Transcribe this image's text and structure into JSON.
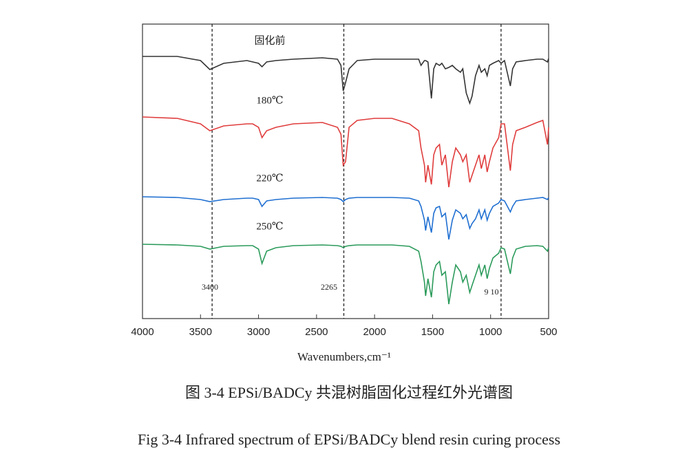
{
  "chart_data": {
    "type": "line",
    "xlabel": "Wavenumbers,cm⁻¹",
    "xlim": [
      4000,
      500
    ],
    "xticks": [
      4000,
      3500,
      3000,
      2500,
      2000,
      1500,
      1000,
      500
    ],
    "ylim": [
      0,
      428
    ],
    "x": [
      4000,
      3700,
      3500,
      3420,
      3300,
      3100,
      3050,
      3000,
      2970,
      2930,
      2850,
      2700,
      2450,
      2320,
      2290,
      2270,
      2250,
      2220,
      2150,
      2000,
      1850,
      1700,
      1620,
      1600,
      1570,
      1560,
      1540,
      1510,
      1490,
      1470,
      1440,
      1420,
      1390,
      1360,
      1330,
      1300,
      1260,
      1240,
      1210,
      1180,
      1160,
      1130,
      1100,
      1080,
      1050,
      1030,
      1010,
      980,
      930,
      910,
      880,
      830,
      810,
      780,
      700,
      600,
      550,
      510,
      500
    ],
    "series": [
      {
        "name": "固化前",
        "color": "#333333",
        "values": [
          381,
          381,
          375,
          362,
          371,
          375,
          373,
          371,
          366,
          373,
          375,
          377,
          379,
          377,
          368,
          331,
          343,
          363,
          375,
          377,
          377,
          377,
          377,
          368,
          375,
          375,
          373,
          320,
          363,
          371,
          368,
          371,
          363,
          365,
          368,
          363,
          358,
          363,
          328,
          313,
          323,
          353,
          368,
          358,
          363,
          353,
          368,
          371,
          375,
          371,
          375,
          338,
          363,
          373,
          375,
          377,
          377,
          373,
          378
        ]
      },
      {
        "name": "180℃",
        "color": "#e03c3c",
        "values": [
          293,
          291,
          283,
          273,
          280,
          283,
          283,
          278,
          263,
          273,
          278,
          283,
          285,
          278,
          268,
          223,
          228,
          278,
          288,
          291,
          291,
          283,
          273,
          248,
          223,
          198,
          223,
          195,
          238,
          248,
          253,
          223,
          238,
          191,
          228,
          248,
          238,
          228,
          238,
          198,
          208,
          223,
          238,
          218,
          238,
          213,
          228,
          248,
          263,
          283,
          283,
          215,
          253,
          273,
          278,
          285,
          288,
          253,
          278
        ]
      },
      {
        "name": "220℃",
        "color": "#1f6fd1",
        "values": [
          177,
          176,
          173,
          170,
          173,
          175,
          175,
          173,
          163,
          171,
          173,
          175,
          176,
          175,
          173,
          170,
          173,
          175,
          176,
          176,
          176,
          175,
          171,
          163,
          143,
          128,
          148,
          125,
          153,
          161,
          163,
          148,
          153,
          115,
          143,
          158,
          153,
          145,
          151,
          131,
          138,
          145,
          158,
          145,
          158,
          143,
          153,
          163,
          168,
          173,
          171,
          155,
          163,
          171,
          173,
          175,
          176,
          173,
          176
        ]
      },
      {
        "name": "250℃",
        "color": "#2a9a5a",
        "values": [
          108,
          107,
          105,
          101,
          105,
          106,
          106,
          101,
          80,
          98,
          103,
          106,
          107,
          106,
          105,
          103,
          105,
          106,
          107,
          107,
          107,
          105,
          98,
          83,
          53,
          33,
          58,
          31,
          68,
          78,
          83,
          63,
          68,
          21,
          53,
          78,
          68,
          53,
          63,
          38,
          48,
          63,
          78,
          63,
          78,
          58,
          73,
          88,
          95,
          103,
          101,
          65,
          88,
          101,
          105,
          106,
          105,
          98,
          103
        ]
      }
    ],
    "markers": [
      {
        "value": 3400,
        "label": "3400"
      },
      {
        "value": 2265,
        "label": "2265"
      },
      {
        "value": 910,
        "label": "9 10"
      }
    ],
    "captions": [
      "图 3-4 EPSi/BADCy 共混树脂固化过程红外光谱图",
      "Fig 3-4 Infrared spectrum of EPSi/BADCy blend resin curing process"
    ]
  }
}
